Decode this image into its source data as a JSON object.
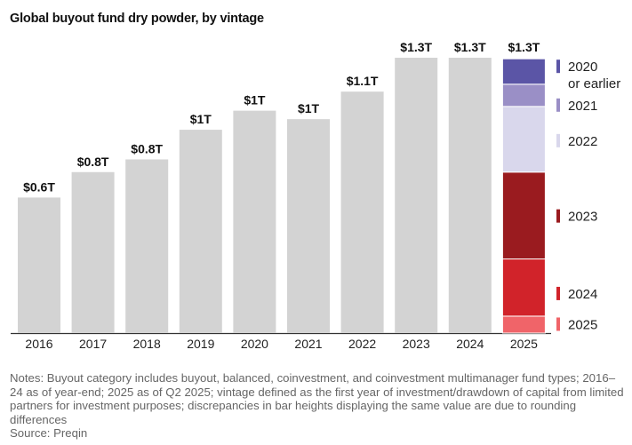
{
  "chart_data": {
    "type": "bar",
    "title": "Global buyout fund dry powder, by vintage",
    "xlabel": "",
    "ylabel": "",
    "ylim": [
      0,
      1.3
    ],
    "grid": false,
    "categories": [
      "2016",
      "2017",
      "2018",
      "2019",
      "2020",
      "2021",
      "2022",
      "2023",
      "2024",
      "2025"
    ],
    "values": [
      0.64,
      0.76,
      0.82,
      0.96,
      1.05,
      1.01,
      1.14,
      1.3,
      1.3,
      1.3
    ],
    "data_labels": [
      "$0.6T",
      "$0.8T",
      "$0.8T",
      "$1T",
      "$1T",
      "$1T",
      "$1.1T",
      "$1.3T",
      "$1.3T",
      "$1.3T"
    ],
    "bar_color": "#d3d3d3",
    "stacked_category": "2025",
    "stack_series": [
      {
        "name": "2025",
        "value": 0.08,
        "color": "#f06469"
      },
      {
        "name": "2024",
        "value": 0.27,
        "color": "#d1232a"
      },
      {
        "name": "2023",
        "value": 0.41,
        "color": "#9a1b1f"
      },
      {
        "name": "2022",
        "value": 0.31,
        "color": "#d9d7ec"
      },
      {
        "name": "2021",
        "value": 0.105,
        "color": "#9a8fc6"
      },
      {
        "name": "2020 or earlier",
        "value": 0.12,
        "color": "#5b55a6",
        "label_lines": [
          "2020",
          "or earlier"
        ]
      }
    ],
    "legend_placement": "right"
  },
  "notes": {
    "text": "Notes: Buyout category includes buyout, balanced, coinvestment, and coinvestment multimanager fund types; 2016–24 as of year-end; 2025 as of Q2 2025; vintage defined as the first year of investment/drawdown of capital from limited partners for investment purposes; discrepancies in bar heights displaying the same value are due to rounding differences",
    "source": "Source: Preqin"
  }
}
